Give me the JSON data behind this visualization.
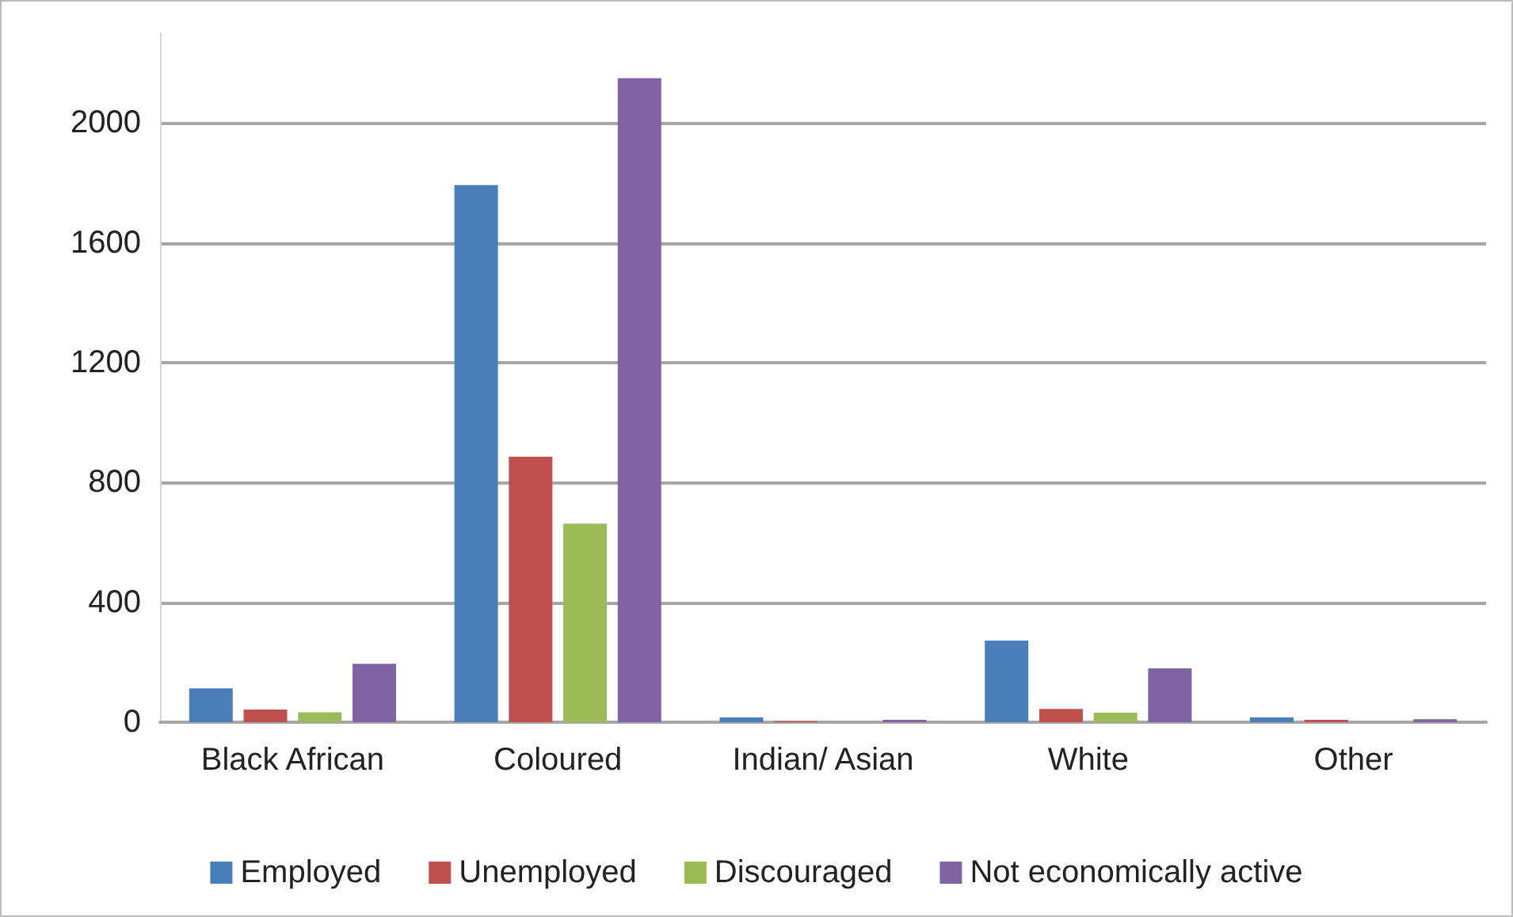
{
  "chart_data": {
    "type": "bar",
    "categories": [
      "Black African",
      "Coloured",
      "Indian/ Asian",
      "White",
      "Other"
    ],
    "series": [
      {
        "name": "Employed",
        "color": "#4a7ebb",
        "values": [
          113,
          1793,
          16,
          272,
          16
        ]
      },
      {
        "name": "Unemployed",
        "color": "#c0504d",
        "values": [
          42,
          886,
          3,
          44,
          8
        ]
      },
      {
        "name": "Discouraged",
        "color": "#9bbb59",
        "values": [
          33,
          663,
          null,
          32,
          null
        ]
      },
      {
        "name": "Not economically active",
        "color": "#8064a2",
        "values": [
          195,
          2150,
          8,
          180,
          10
        ]
      }
    ],
    "ylim": [
      0,
      2300
    ],
    "yticks": [
      0,
      400,
      800,
      1200,
      1600,
      2000
    ],
    "grid": "y",
    "legend": "bottom"
  }
}
